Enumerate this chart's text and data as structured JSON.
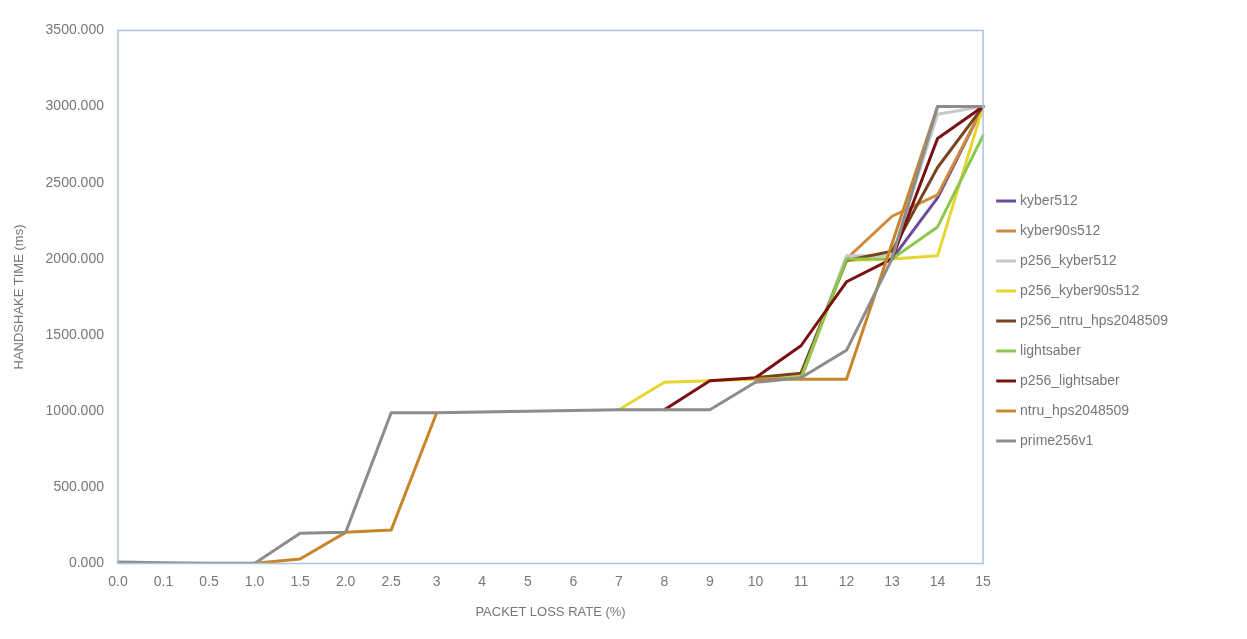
{
  "chart_data": {
    "type": "line",
    "xlabel": "PACKET LOSS RATE (%)",
    "ylabel": "HANDSHAKE TIME (ms)",
    "categories": [
      "0.0",
      "0.1",
      "0.5",
      "1.0",
      "1.5",
      "2.0",
      "2.5",
      "3",
      "4",
      "5",
      "6",
      "7",
      "8",
      "9",
      "10",
      "11",
      "12",
      "13",
      "14",
      "15"
    ],
    "ylim": [
      0,
      3500
    ],
    "yticks": [
      {
        "value": 0,
        "label": "0.000"
      },
      {
        "value": 500,
        "label": "500.000"
      },
      {
        "value": 1000,
        "label": "1000.000"
      },
      {
        "value": 1500,
        "label": "1500.000"
      },
      {
        "value": 2000,
        "label": "2000.000"
      },
      {
        "value": 2500,
        "label": "2500.000"
      },
      {
        "value": 3000,
        "label": "3000.000"
      },
      {
        "value": 3500,
        "label": "3500.000"
      }
    ],
    "grid": false,
    "legend": "right",
    "marker": "none",
    "line_style": "solid",
    "series": [
      {
        "name": "kyber512",
        "color": "#6a4c9c",
        "values": [
          null,
          null,
          null,
          null,
          null,
          null,
          null,
          null,
          null,
          null,
          null,
          null,
          null,
          null,
          null,
          null,
          null,
          2000,
          2400,
          3000
        ]
      },
      {
        "name": "kyber90s512",
        "color": "#d08a3c",
        "values": [
          null,
          null,
          null,
          null,
          null,
          null,
          null,
          null,
          null,
          null,
          null,
          null,
          null,
          null,
          null,
          1210,
          2000,
          2280,
          2420,
          3000
        ]
      },
      {
        "name": "p256_kyber512",
        "color": "#c8c8c8",
        "values": [
          null,
          null,
          null,
          null,
          null,
          null,
          null,
          null,
          null,
          null,
          null,
          null,
          null,
          null,
          null,
          1220,
          2020,
          2020,
          2950,
          3000
        ]
      },
      {
        "name": "p256_kyber90s512",
        "color": "#e6d630",
        "values": [
          null,
          null,
          null,
          null,
          null,
          null,
          null,
          null,
          null,
          null,
          null,
          1010,
          1190,
          1200,
          1210,
          1230,
          1990,
          2000,
          2020,
          3000
        ]
      },
      {
        "name": "p256_ntru_hps2048509",
        "color": "#7a4420",
        "values": [
          null,
          null,
          null,
          null,
          null,
          null,
          null,
          null,
          null,
          null,
          null,
          null,
          null,
          null,
          1220,
          1250,
          1990,
          2050,
          2600,
          3000
        ]
      },
      {
        "name": "lightsaber",
        "color": "#8cc850",
        "values": [
          null,
          null,
          null,
          null,
          null,
          null,
          null,
          null,
          null,
          null,
          null,
          null,
          null,
          null,
          1210,
          1220,
          2000,
          2000,
          2210,
          2810
        ]
      },
      {
        "name": "p256_lightsaber",
        "color": "#7a1010",
        "values": [
          null,
          null,
          null,
          null,
          null,
          null,
          null,
          null,
          null,
          null,
          null,
          null,
          1010,
          1200,
          1220,
          1430,
          1850,
          2000,
          2790,
          3000
        ]
      },
      {
        "name": "ntru_hps2048509",
        "color": "#c8862c",
        "values": [
          null,
          null,
          null,
          2,
          30,
          205,
          220,
          990,
          null,
          null,
          null,
          null,
          null,
          null,
          1210,
          1210,
          1210,
          2100,
          3000,
          3000
        ]
      },
      {
        "name": "prime256v1",
        "color": "#8c8c8c",
        "values": [
          10,
          5,
          3,
          2,
          200,
          205,
          990,
          990,
          995,
          1000,
          1005,
          1010,
          1010,
          1010,
          1190,
          1220,
          1400,
          2000,
          3000,
          3000
        ]
      }
    ]
  }
}
